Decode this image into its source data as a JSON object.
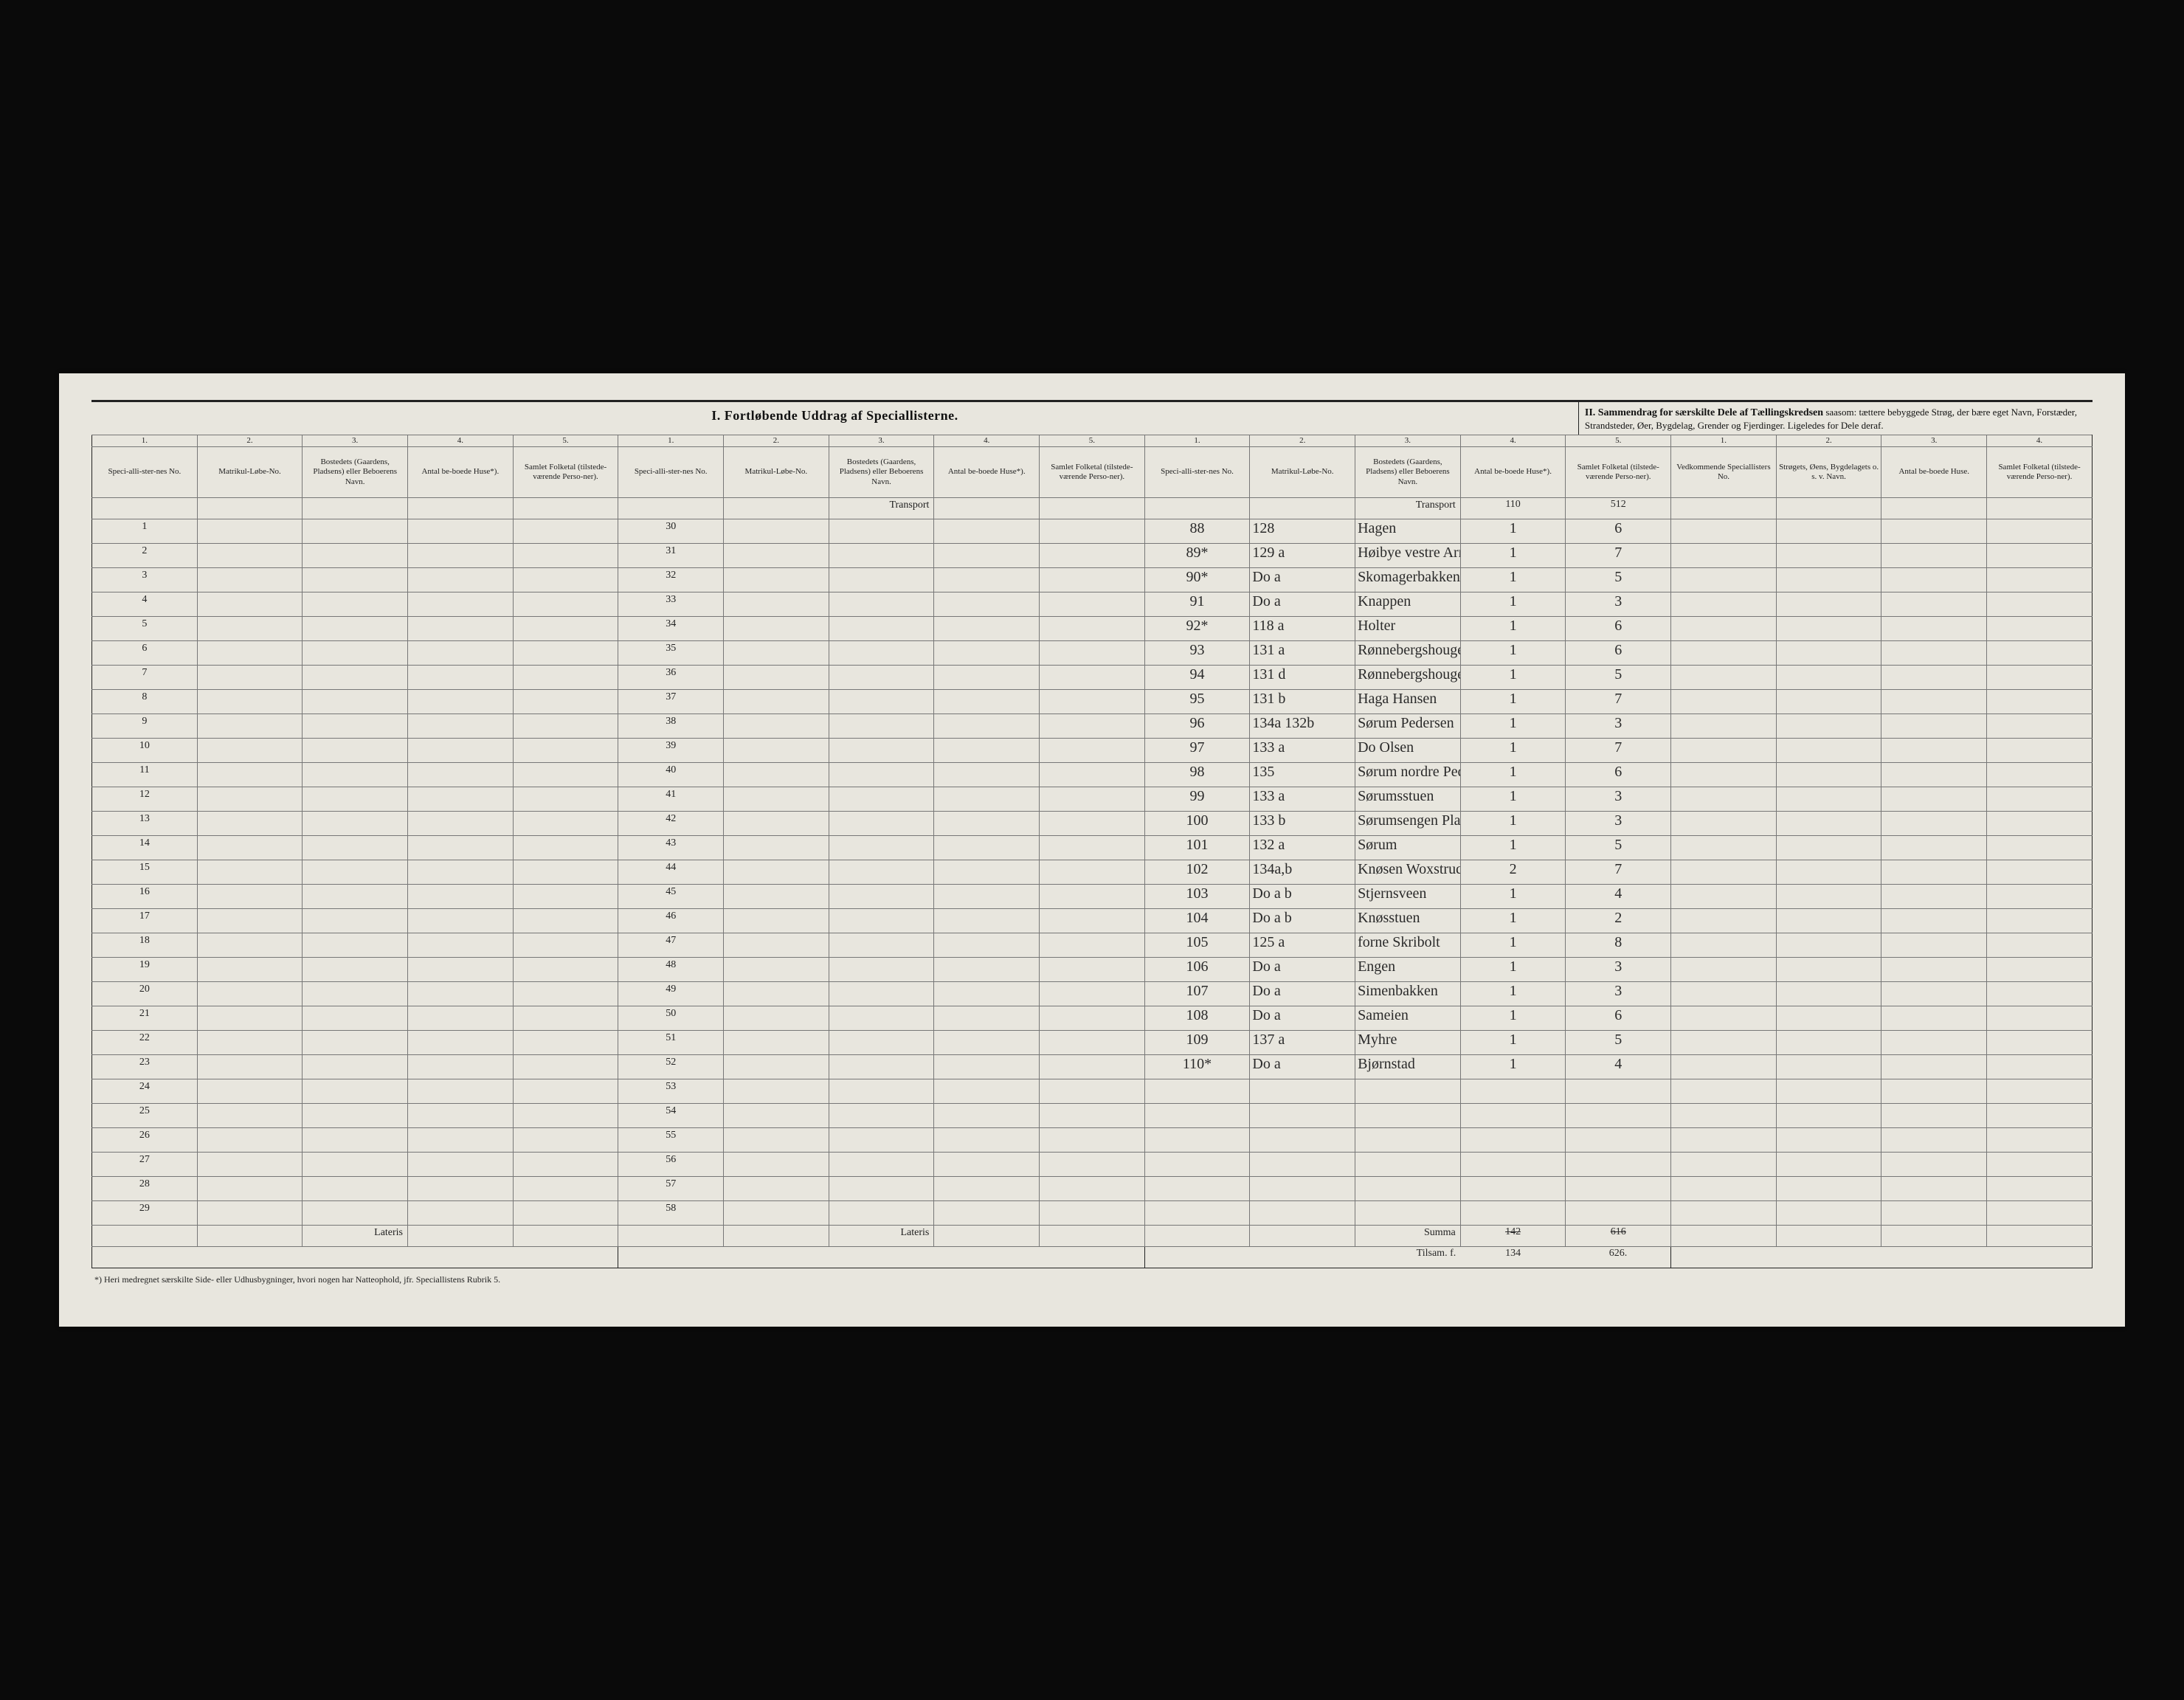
{
  "section1_title": "I.  Fortløbende Uddrag af Speciallisterne.",
  "section2_title_bold": "II.  Sammendrag for særskilte Dele af Tællingskredsen",
  "section2_title_rest": " saasom: tættere bebyggede Strøg, der bære eget Navn, Forstæder, Strandsteder, Øer, Bygdelag, Grender og Fjerdinger. Ligeledes for Dele deraf.",
  "colnums": [
    "1.",
    "2.",
    "3.",
    "4.",
    "5."
  ],
  "headers": {
    "no": "Speci-alli-ster-nes No.",
    "matrik": "Matrikul-Løbe-No.",
    "bosted": "Bostedets (Gaardens, Pladsens) eller Beboerens Navn.",
    "huse": "Antal be-boede Huse*).",
    "folketal": "Samlet Folketal (tilstede-værende Perso-ner).",
    "vedk": "Vedkommende Speciallisters No.",
    "strog": "Strøgets, Øens, Bygdelagets o. s. v. Navn.",
    "huse2": "Antal be-boede Huse.",
    "folk2": "Samlet Folketal (tilstede-værende Perso-ner)."
  },
  "transport_label": "Transport",
  "lateris_label": "Lateris",
  "summa_label": "Summa",
  "block1_rows": [
    "1",
    "2",
    "3",
    "4",
    "5",
    "6",
    "7",
    "8",
    "9",
    "10",
    "11",
    "12",
    "13",
    "14",
    "15",
    "16",
    "17",
    "18",
    "19",
    "20",
    "21",
    "22",
    "23",
    "24",
    "25",
    "26",
    "27",
    "28",
    "29"
  ],
  "block2_rows": [
    "30",
    "31",
    "32",
    "33",
    "34",
    "35",
    "36",
    "37",
    "38",
    "39",
    "40",
    "41",
    "42",
    "43",
    "44",
    "45",
    "46",
    "47",
    "48",
    "49",
    "50",
    "51",
    "52",
    "53",
    "54",
    "55",
    "56",
    "57",
    "58"
  ],
  "transport_c3": {
    "huse": "110",
    "folk": "512"
  },
  "block3_rows": [
    {
      "no": "88",
      "mat": "128",
      "bost": "Hagen",
      "huse": "1",
      "folk": "6"
    },
    {
      "no": "89*",
      "mat": "129 a",
      "bost": "Høibye vestre Arnesen",
      "huse": "1",
      "folk": "7"
    },
    {
      "no": "90*",
      "mat": "Do a",
      "bost": "Skomagerbakken",
      "huse": "1",
      "folk": "5"
    },
    {
      "no": "91",
      "mat": "Do a",
      "bost": "Knappen",
      "huse": "1",
      "folk": "3"
    },
    {
      "no": "92*",
      "mat": "118 a",
      "bost": "Holter",
      "huse": "1",
      "folk": "6"
    },
    {
      "no": "93",
      "mat": "131 a",
      "bost": "Rønnebergshougen vestre Olsen",
      "huse": "1",
      "folk": "6"
    },
    {
      "no": "94",
      "mat": "131 d",
      "bost": "Rønnebergshougen østre Børresen",
      "huse": "1",
      "folk": "5"
    },
    {
      "no": "95",
      "mat": "131 b",
      "bost": "Haga  Hansen",
      "huse": "1",
      "folk": "7"
    },
    {
      "no": "96",
      "mat": "134a 132b",
      "bost": "Sørum Pedersen",
      "huse": "1",
      "folk": "3"
    },
    {
      "no": "97",
      "mat": "133 a",
      "bost": "Do   Olsen",
      "huse": "1",
      "folk": "7"
    },
    {
      "no": "98",
      "mat": "135",
      "bost": "Sørum nordre Pedersen",
      "huse": "1",
      "folk": "6"
    },
    {
      "no": "99",
      "mat": "133 a",
      "bost": "Sørumsstuen",
      "huse": "1",
      "folk": "3"
    },
    {
      "no": "100",
      "mat": "133 b",
      "bost": "Sørumsengen Pladsmen",
      "huse": "1",
      "folk": "3"
    },
    {
      "no": "101",
      "mat": "132 a",
      "bost": "Sørum",
      "huse": "1",
      "folk": "5"
    },
    {
      "no": "102",
      "mat": "134a,b",
      "bost": "Knøsen Woxstrud",
      "huse": "2",
      "folk": "7"
    },
    {
      "no": "103",
      "mat": "Do a b",
      "bost": "Stjernsveen",
      "huse": "1",
      "folk": "4"
    },
    {
      "no": "104",
      "mat": "Do a b",
      "bost": "Knøsstuen",
      "huse": "1",
      "folk": "2"
    },
    {
      "no": "105",
      "mat": "125 a",
      "bost": "forne  Skribolt",
      "huse": "1",
      "folk": "8"
    },
    {
      "no": "106",
      "mat": "Do a",
      "bost": "Engen",
      "huse": "1",
      "folk": "3"
    },
    {
      "no": "107",
      "mat": "Do a",
      "bost": "Simenbakken",
      "huse": "1",
      "folk": "3"
    },
    {
      "no": "108",
      "mat": "Do a",
      "bost": "Sameien",
      "huse": "1",
      "folk": "6"
    },
    {
      "no": "109",
      "mat": "137 a",
      "bost": "Myhre",
      "huse": "1",
      "folk": "5"
    },
    {
      "no": "110*",
      "mat": "Do a",
      "bost": "Bjørnstad",
      "huse": "1",
      "folk": "4"
    },
    {
      "no": "",
      "mat": "",
      "bost": "",
      "huse": "",
      "folk": ""
    },
    {
      "no": "",
      "mat": "",
      "bost": "",
      "huse": "",
      "folk": ""
    },
    {
      "no": "",
      "mat": "",
      "bost": "",
      "huse": "",
      "folk": ""
    },
    {
      "no": "",
      "mat": "",
      "bost": "",
      "huse": "",
      "folk": ""
    },
    {
      "no": "",
      "mat": "",
      "bost": "",
      "huse": "",
      "folk": ""
    },
    {
      "no": "",
      "mat": "",
      "bost": "",
      "huse": "",
      "folk": ""
    }
  ],
  "summa": {
    "huse_struck": "142",
    "folk_struck": "616"
  },
  "tilsamen": {
    "label": "Tilsam.  f.",
    "huse": "134",
    "folk": "626."
  },
  "footnote": "*) Heri medregnet særskilte Side- eller Udhusbygninger, hvori nogen har Natteophold, jfr. Speciallistens Rubrik 5.",
  "section2_blank_rows": 31
}
